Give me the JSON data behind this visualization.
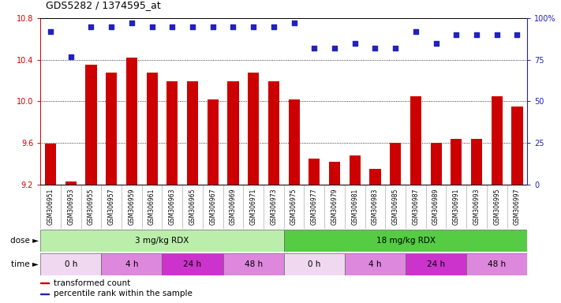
{
  "title": "GDS5282 / 1374595_at",
  "samples": [
    "GSM306951",
    "GSM306953",
    "GSM306955",
    "GSM306957",
    "GSM306959",
    "GSM306961",
    "GSM306963",
    "GSM306965",
    "GSM306967",
    "GSM306969",
    "GSM306971",
    "GSM306973",
    "GSM306975",
    "GSM306977",
    "GSM306979",
    "GSM306981",
    "GSM306983",
    "GSM306985",
    "GSM306987",
    "GSM306989",
    "GSM306991",
    "GSM306993",
    "GSM306995",
    "GSM306997"
  ],
  "bar_values": [
    9.59,
    9.23,
    10.35,
    10.28,
    10.42,
    10.28,
    10.19,
    10.19,
    10.02,
    10.19,
    10.28,
    10.19,
    10.02,
    9.45,
    9.42,
    9.48,
    9.35,
    9.6,
    10.05,
    9.6,
    9.64,
    9.64,
    10.05,
    9.95
  ],
  "percentile_values": [
    92,
    77,
    95,
    95,
    97,
    95,
    95,
    95,
    95,
    95,
    95,
    95,
    97,
    82,
    82,
    85,
    82,
    82,
    92,
    85,
    90,
    90,
    90,
    90
  ],
  "ylim_left": [
    9.2,
    10.8
  ],
  "ylim_right": [
    0,
    100
  ],
  "yticks_left": [
    9.2,
    9.6,
    10.0,
    10.4,
    10.8
  ],
  "yticks_right": [
    0,
    25,
    50,
    75,
    100
  ],
  "ytick_labels_right": [
    "0",
    "25",
    "50",
    "75",
    "100%"
  ],
  "bar_color": "#cc0000",
  "dot_color": "#2222bb",
  "xtick_bg": "#c8c8c8",
  "dose_groups": [
    {
      "label": "3 mg/kg RDX",
      "start": 0,
      "end": 12,
      "color": "#bbeeaa"
    },
    {
      "label": "18 mg/kg RDX",
      "start": 12,
      "end": 24,
      "color": "#55cc44"
    }
  ],
  "time_groups": [
    {
      "label": "0 h",
      "start": 0,
      "end": 3,
      "color": "#f0d8f0"
    },
    {
      "label": "4 h",
      "start": 3,
      "end": 6,
      "color": "#dd88dd"
    },
    {
      "label": "24 h",
      "start": 6,
      "end": 9,
      "color": "#cc33cc"
    },
    {
      "label": "48 h",
      "start": 9,
      "end": 12,
      "color": "#dd88dd"
    },
    {
      "label": "0 h",
      "start": 12,
      "end": 15,
      "color": "#f0d8f0"
    },
    {
      "label": "4 h",
      "start": 15,
      "end": 18,
      "color": "#dd88dd"
    },
    {
      "label": "24 h",
      "start": 18,
      "end": 21,
      "color": "#cc33cc"
    },
    {
      "label": "48 h",
      "start": 21,
      "end": 24,
      "color": "#dd88dd"
    }
  ],
  "legend_items": [
    {
      "label": "transformed count",
      "color": "#cc0000"
    },
    {
      "label": "percentile rank within the sample",
      "color": "#2222bb"
    }
  ],
  "fig_w": 7.11,
  "fig_h": 3.84,
  "dpi": 100
}
